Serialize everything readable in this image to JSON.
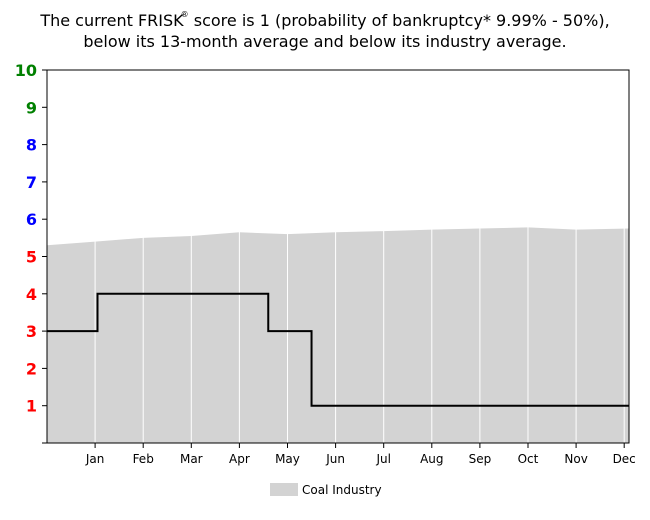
{
  "title": {
    "line1_pre": "The current FRISK",
    "registered_mark": "®",
    "line1_post": " score is 1 (probability of bankruptcy* 9.99% - 50%),",
    "line2": "below its 13-month average and below its industry average."
  },
  "chart_data": {
    "type": "line",
    "y_ticks": [
      {
        "label": "10",
        "color": "#008000"
      },
      {
        "label": "9",
        "color": "#008000"
      },
      {
        "label": "8",
        "color": "#0000ff"
      },
      {
        "label": "7",
        "color": "#0000ff"
      },
      {
        "label": "6",
        "color": "#0000ff"
      },
      {
        "label": "5",
        "color": "#ff0000"
      },
      {
        "label": "4",
        "color": "#ff0000"
      },
      {
        "label": "3",
        "color": "#ff0000"
      },
      {
        "label": "2",
        "color": "#ff0000"
      },
      {
        "label": "1",
        "color": "#ff0000"
      }
    ],
    "ylim": [
      0,
      10
    ],
    "x_tick_labels": [
      "Jan",
      "Feb",
      "Mar",
      "Apr",
      "May",
      "Jun",
      "Jul",
      "Aug",
      "Sep",
      "Oct",
      "Nov",
      "Dec"
    ],
    "xlim": [
      -1,
      11.1
    ],
    "grid": "vertical",
    "frisk_score_steps": [
      {
        "x": -1,
        "y": 3
      },
      {
        "x": 0.05,
        "y": 4
      },
      {
        "x": 3.6,
        "y": 3
      },
      {
        "x": 4.5,
        "y": 1
      },
      {
        "x": 11.1,
        "y": 1
      }
    ],
    "industry_average": {
      "name": "Coal Industry",
      "color": "#d3d3d3",
      "x": [
        -1,
        0,
        1,
        2,
        3,
        4,
        5,
        6,
        7,
        8,
        9,
        10,
        11.1
      ],
      "y": [
        5.3,
        5.4,
        5.5,
        5.55,
        5.65,
        5.6,
        5.65,
        5.68,
        5.72,
        5.75,
        5.78,
        5.72,
        5.75
      ]
    },
    "legend": {
      "position": "bottom-center"
    }
  }
}
